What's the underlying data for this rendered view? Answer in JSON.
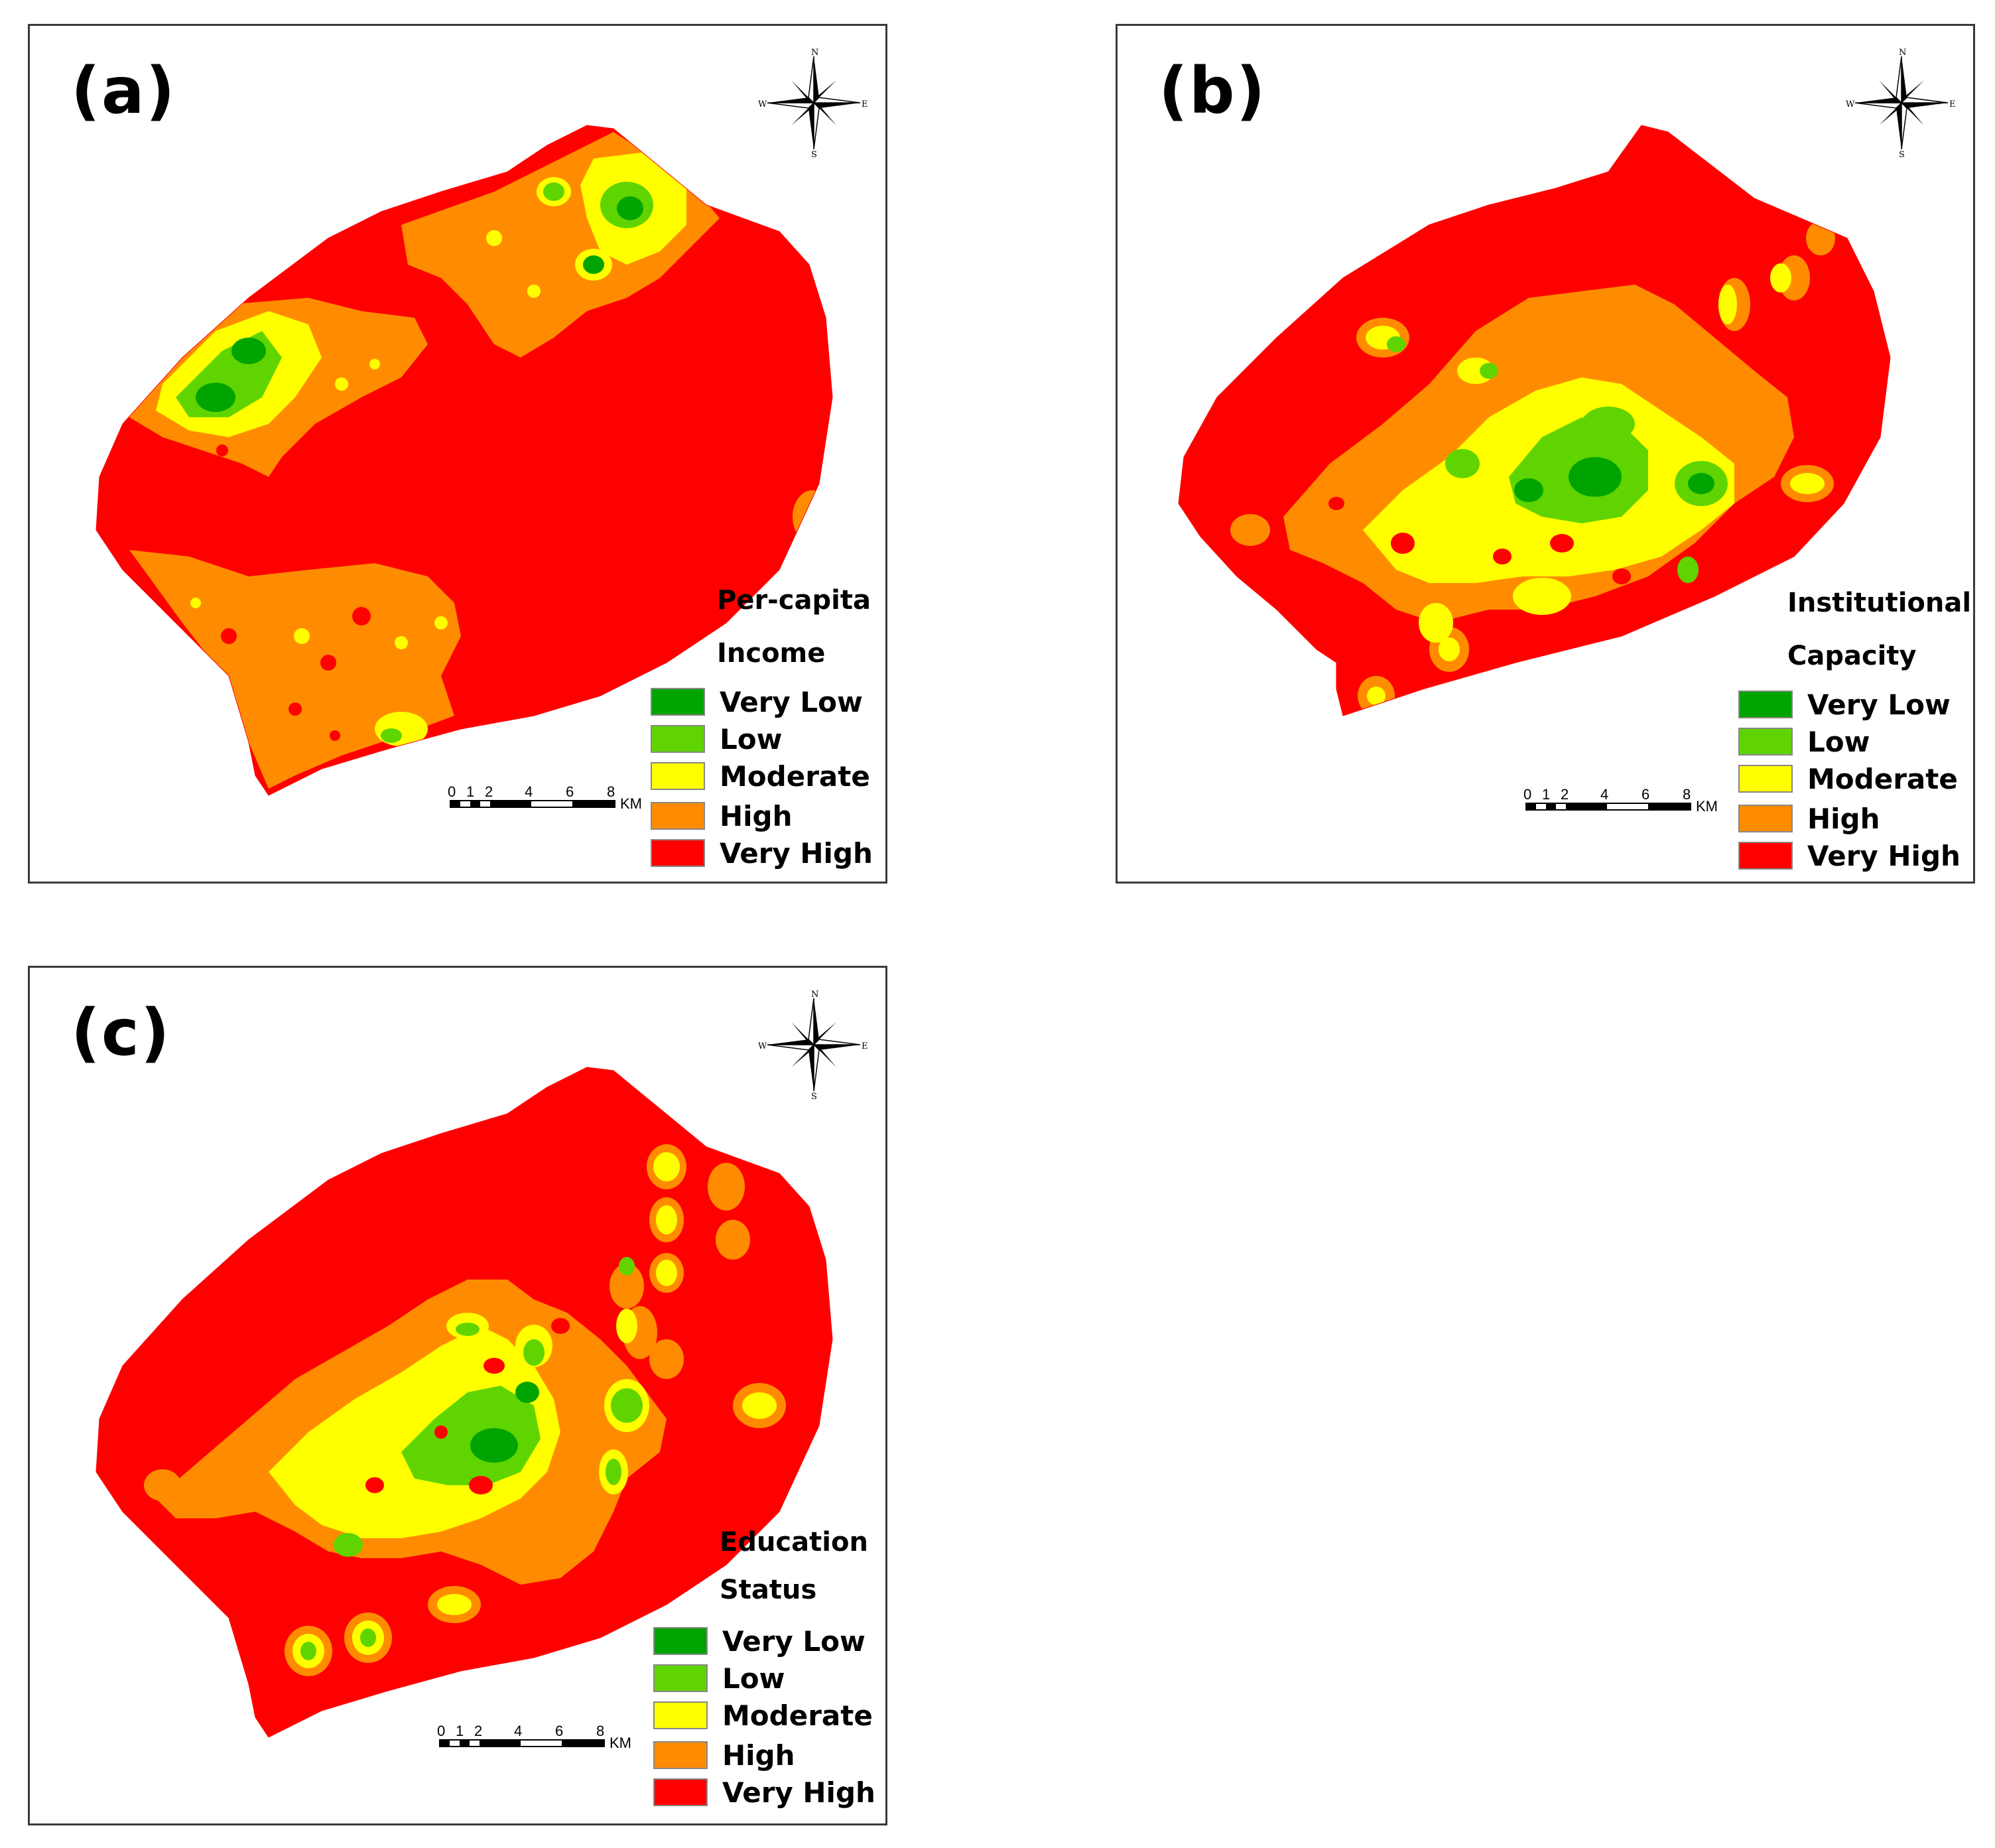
{
  "figure": {
    "panels": [
      {
        "id": "a",
        "label": "(a)",
        "legend_title_1": "Per-capita",
        "legend_title_2": "Income"
      },
      {
        "id": "b",
        "label": "(b)",
        "legend_title_1": "Institutional",
        "legend_title_2": "Capacity"
      },
      {
        "id": "c",
        "label": "(c)",
        "legend_title_1": "Education",
        "legend_title_2": "Status"
      }
    ],
    "legend_classes": [
      {
        "label": "Very Low",
        "color": "#00a400"
      },
      {
        "label": "Low",
        "color": "#5fd400"
      },
      {
        "label": "Moderate",
        "color": "#ffff00"
      },
      {
        "label": "High",
        "color": "#ff8c00"
      },
      {
        "label": "Very High",
        "color": "#ff0000"
      }
    ],
    "scale_bar": {
      "ticks": [
        "0",
        "1",
        "2",
        "4",
        "6",
        "8"
      ],
      "unit": "KM"
    },
    "compass": {
      "n": "N",
      "s": "S",
      "e": "E",
      "w": "W"
    }
  }
}
